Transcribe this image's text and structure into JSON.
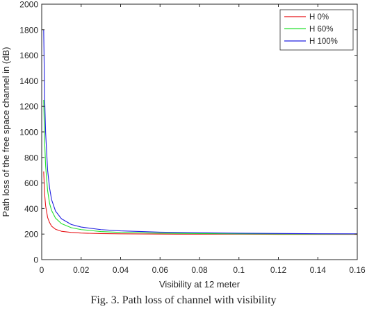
{
  "caption": "Fig. 3. Path loss of channel with visibility",
  "chart_data": {
    "type": "line",
    "xlabel": "Visibility at 12 meter",
    "ylabel": "Path loss of the free space channel in (dB)",
    "xlim": [
      0,
      0.16
    ],
    "ylim": [
      0,
      2000
    ],
    "xticks": [
      0,
      0.02,
      0.04,
      0.06,
      0.08,
      0.1,
      0.12,
      0.14,
      0.16
    ],
    "xtick_labels": [
      "0",
      "0.02",
      "0.04",
      "0.06",
      "0.08",
      "0.1",
      "0.12",
      "0.14",
      "0.16"
    ],
    "yticks": [
      0,
      200,
      400,
      600,
      800,
      1000,
      1200,
      1400,
      1600,
      1800,
      2000
    ],
    "ytick_labels": [
      "0",
      "200",
      "400",
      "600",
      "800",
      "1000",
      "1200",
      "1400",
      "1600",
      "1800",
      "2000"
    ],
    "grid": false,
    "legend_position": "top-right",
    "series": [
      {
        "name": "H 0%",
        "color": "#e8161a",
        "x": [
          0.001,
          0.0015,
          0.002,
          0.003,
          0.004,
          0.005,
          0.007,
          0.01,
          0.015,
          0.02,
          0.03,
          0.04,
          0.06,
          0.08,
          0.1,
          0.12,
          0.14,
          0.16
        ],
        "y": [
          690,
          510,
          420,
          330,
          290,
          262,
          238,
          222,
          213,
          208,
          204,
          202,
          200,
          199,
          199,
          198,
          198,
          198
        ]
      },
      {
        "name": "H 60%",
        "color": "#22e02c",
        "x": [
          0.001,
          0.0015,
          0.002,
          0.003,
          0.004,
          0.005,
          0.007,
          0.01,
          0.015,
          0.02,
          0.03,
          0.04,
          0.06,
          0.08,
          0.1,
          0.12,
          0.14,
          0.16
        ],
        "y": [
          1250,
          920,
          730,
          540,
          440,
          385,
          325,
          282,
          250,
          235,
          220,
          213,
          207,
          204,
          202,
          201,
          200,
          200
        ]
      },
      {
        "name": "H 100%",
        "color": "#2020e0",
        "x": [
          0.001,
          0.0015,
          0.002,
          0.003,
          0.004,
          0.005,
          0.007,
          0.01,
          0.015,
          0.02,
          0.03,
          0.04,
          0.06,
          0.08,
          0.1,
          0.12,
          0.14,
          0.16
        ],
        "y": [
          1800,
          1260,
          990,
          700,
          560,
          470,
          380,
          320,
          275,
          255,
          235,
          225,
          215,
          210,
          207,
          205,
          203,
          202
        ]
      }
    ]
  }
}
